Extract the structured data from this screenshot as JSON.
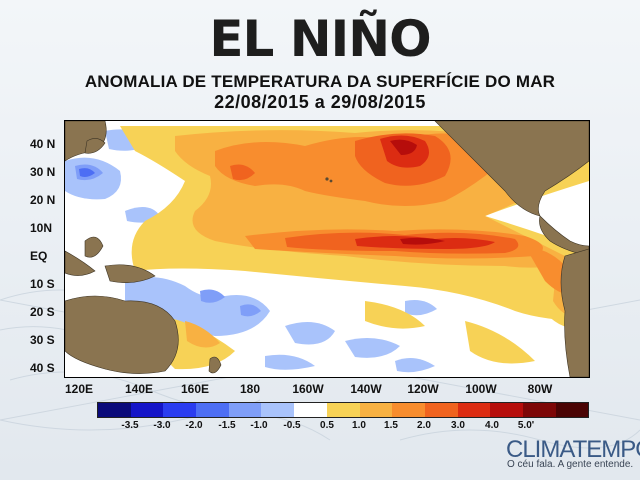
{
  "header": {
    "title": "EL NIÑO",
    "subtitle": "ANOMALIA DE TEMPERATURA DA SUPERFÍCIE DO MAR",
    "dates": "22/08/2015 a 29/08/2015"
  },
  "map": {
    "lat_labels": [
      "40 N",
      "30 N",
      "20 N",
      "10N",
      "EQ",
      "10 S",
      "20 S",
      "30 S",
      "40 S"
    ],
    "lon_labels": [
      "120E",
      "140E",
      "160E",
      "180",
      "160W",
      "140W",
      "120W",
      "100W",
      "80W"
    ]
  },
  "legend": {
    "labels": [
      "-3.5",
      "-3.0",
      "-2.0",
      "-1.5",
      "-1.0",
      "-0.5",
      "0.5",
      "1.0",
      "1.5",
      "2.0",
      "3.0",
      "4.0",
      "5.0'"
    ],
    "colors": [
      "#0a0a7a",
      "#1414c8",
      "#2a3cf0",
      "#4d6ef4",
      "#7f9ef8",
      "#a9c3fb",
      "#ffffff",
      "#f7d256",
      "#f8b142",
      "#f88d2e",
      "#f0631f",
      "#dc2c12",
      "#b60d0b",
      "#7d0707",
      "#4b0404"
    ]
  },
  "brand": {
    "name": "CLIMATEMPO",
    "tagline": "O céu fala. A gente entende."
  }
}
